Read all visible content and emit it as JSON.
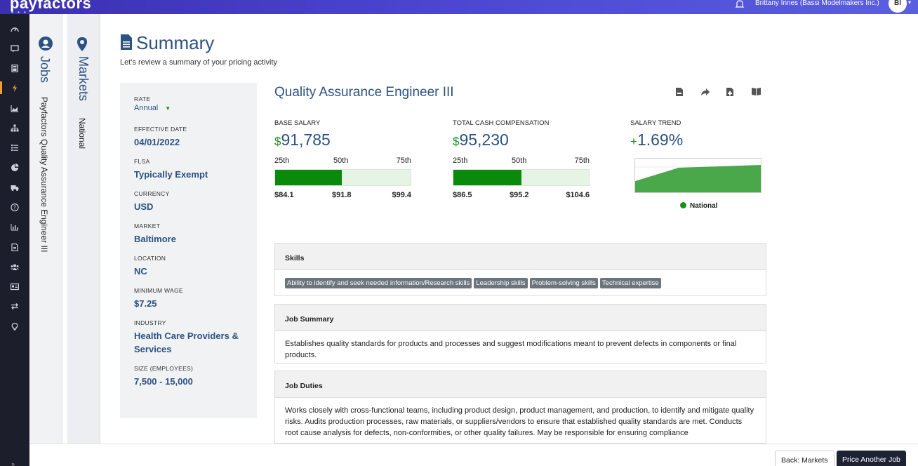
{
  "header": {
    "brand": "payfactors",
    "user": "Brittany Innes (Bassi Modelmakers Inc.)",
    "avatar_initials": "BI"
  },
  "nav": {
    "icons": [
      "dashboard-icon",
      "comment-icon",
      "calculator-icon",
      "bolt-icon",
      "area-chart-icon",
      "sitemap-icon",
      "list-icon",
      "pie-chart-icon",
      "truck-icon",
      "help-icon",
      "bar-chart-icon",
      "document-icon",
      "users-icon",
      "id-card-icon",
      "exchange-icon",
      "lightbulb-icon"
    ],
    "active_index": 3,
    "collapse": "»"
  },
  "panels": {
    "jobs": {
      "title": "Jobs",
      "subtitle": "Payfactors Quality Assurance Engineer III"
    },
    "markets": {
      "title": "Markets",
      "subtitle": "National"
    }
  },
  "page": {
    "title": "Summary",
    "subtitle": "Let's review a summary of your pricing activity"
  },
  "info": {
    "rate_label": "RATE",
    "rate_value": "Annual",
    "items": [
      {
        "label": "EFFECTIVE DATE",
        "value": "04/01/2022"
      },
      {
        "label": "FLSA",
        "value": "Typically Exempt"
      },
      {
        "label": "CURRENCY",
        "value": "USD"
      },
      {
        "label": "MARKET",
        "value": "Baltimore"
      },
      {
        "label": "LOCATION",
        "value": "NC"
      },
      {
        "label": "MINIMUM WAGE",
        "value": "$7.25"
      },
      {
        "label": "INDUSTRY",
        "value": "Health Care Providers & Services"
      },
      {
        "label": "SIZE (EMPLOYEES)",
        "value": "7,500 - 15,000"
      }
    ]
  },
  "job": {
    "title": "Quality Assurance Engineer III",
    "actions": [
      "pdf-icon",
      "share-icon",
      "add-file-icon",
      "book-icon"
    ]
  },
  "base_salary": {
    "label": "BASE SALARY",
    "currency": "$",
    "value": "91,785",
    "p25": "25th",
    "p50": "50th",
    "p75": "75th",
    "v25": "$84.1",
    "v50": "$91.8",
    "v75": "$99.4",
    "fill_fraction": 0.49
  },
  "total_cash": {
    "label": "TOTAL CASH COMPENSATION",
    "currency": "$",
    "value": "95,230",
    "p25": "25th",
    "p50": "50th",
    "p75": "75th",
    "v25": "$86.5",
    "v50": "$95.2",
    "v75": "$104.6",
    "fill_fraction": 0.5
  },
  "trend": {
    "label": "SALARY TREND",
    "sign": "+",
    "value": "1.69%",
    "legend": "National",
    "color": "#2ea02e"
  },
  "skills": {
    "heading": "Skills",
    "tags": [
      "Ability to identify and seek needed information/Research skills",
      "Leadership skills",
      "Problem-solving skills",
      "Technical expertise"
    ]
  },
  "job_summary": {
    "heading": "Job Summary",
    "text": "Establishes quality standards for products and processes and suggest modifications meant to prevent defects in components or final products."
  },
  "job_duties": {
    "heading": "Job Duties",
    "text": "Works closely with cross-functional teams, including product design, product management, and production, to identify and mitigate quality risks. Audits production processes, raw materials, or suppliers/vendors to ensure that established quality standards are met. Conducts root cause analysis for defects, non-conformities, or other quality failures. May be responsible for ensuring compliance"
  },
  "footer": {
    "back": "Back: Markets",
    "price": "Price Another Job"
  }
}
